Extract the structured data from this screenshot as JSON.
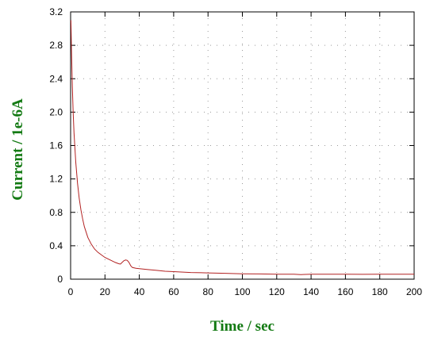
{
  "chart_data": {
    "type": "line",
    "title": "",
    "xlabel": "Time / sec",
    "ylabel": "Current / 1e-6A",
    "xlim": [
      0,
      200
    ],
    "ylim": [
      0,
      3.2
    ],
    "x_ticks": [
      0,
      20,
      40,
      60,
      80,
      100,
      120,
      140,
      160,
      180,
      200
    ],
    "y_ticks": [
      0,
      0.4,
      0.8,
      1.2,
      1.6,
      2.0,
      2.4,
      2.8,
      3.2
    ],
    "x_tick_labels": [
      "0",
      "20",
      "40",
      "60",
      "80",
      "100",
      "120",
      "140",
      "160",
      "180",
      "200"
    ],
    "y_tick_labels": [
      "0",
      "0.4",
      "0.8",
      "1.2",
      "1.6",
      "2.0",
      "2.4",
      "2.8",
      "3.2"
    ],
    "grid": true,
    "colors": {
      "line": "#b22222",
      "axis_title": "#137a13",
      "grid": "#9a9a9a"
    },
    "series": [
      {
        "x": [
          0.2,
          0.5,
          1,
          1.5,
          2,
          3,
          4,
          5,
          6,
          7,
          8,
          10,
          12,
          14,
          16,
          18,
          20,
          22,
          24,
          26,
          28,
          29,
          30,
          31,
          32,
          33,
          34,
          35,
          36,
          38,
          40,
          45,
          50,
          55,
          60,
          70,
          80,
          90,
          100,
          110,
          120,
          130,
          134,
          140,
          150,
          160,
          170,
          180,
          190,
          200
        ],
        "y": [
          3.1,
          2.75,
          2.3,
          2.0,
          1.75,
          1.4,
          1.15,
          0.97,
          0.83,
          0.72,
          0.63,
          0.5,
          0.42,
          0.36,
          0.32,
          0.29,
          0.26,
          0.24,
          0.22,
          0.2,
          0.185,
          0.18,
          0.2,
          0.22,
          0.23,
          0.225,
          0.2,
          0.16,
          0.14,
          0.13,
          0.125,
          0.115,
          0.105,
          0.095,
          0.09,
          0.08,
          0.075,
          0.07,
          0.065,
          0.063,
          0.06,
          0.06,
          0.055,
          0.06,
          0.06,
          0.06,
          0.058,
          0.06,
          0.06,
          0.06
        ]
      }
    ]
  }
}
